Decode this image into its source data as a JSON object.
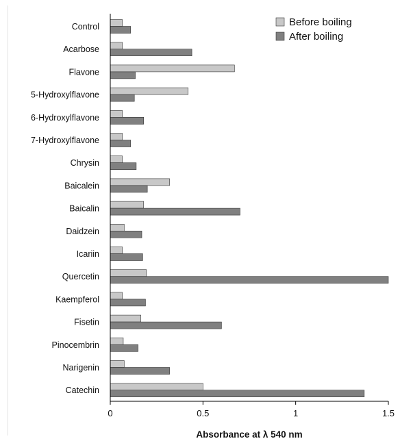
{
  "chart_data": {
    "type": "bar",
    "orientation": "horizontal",
    "xlabel": "Absorbance at λ 540 nm",
    "ylabel": "",
    "xlim": [
      0,
      1.5
    ],
    "xticks": [
      "0",
      "0.5",
      "1",
      "1.5"
    ],
    "grid": false,
    "legend_position": "top-right",
    "categories": [
      "Control",
      "Acarbose",
      "Flavone",
      "5-Hydroxylflavone",
      "6-Hydroxylflavone",
      "7-Hydroxylflavone",
      "Chrysin",
      "Baicalein",
      "Baicalin",
      "Daidzein",
      "Icariin",
      "Quercetin",
      "Kaempferol",
      "Fisetin",
      "Pinocembrin",
      "Narigenin",
      "Catechin"
    ],
    "series": [
      {
        "name": "Before boiling",
        "color": "#c8c8c8",
        "values": [
          0.065,
          0.065,
          0.67,
          0.42,
          0.065,
          0.065,
          0.065,
          0.32,
          0.18,
          0.075,
          0.065,
          0.195,
          0.065,
          0.165,
          0.07,
          0.075,
          0.5
        ]
      },
      {
        "name": "After boiling",
        "color": "#808080",
        "values": [
          0.11,
          0.44,
          0.135,
          0.13,
          0.18,
          0.11,
          0.14,
          0.2,
          0.7,
          0.17,
          0.175,
          1.5,
          0.19,
          0.6,
          0.15,
          0.32,
          1.37
        ]
      }
    ]
  }
}
